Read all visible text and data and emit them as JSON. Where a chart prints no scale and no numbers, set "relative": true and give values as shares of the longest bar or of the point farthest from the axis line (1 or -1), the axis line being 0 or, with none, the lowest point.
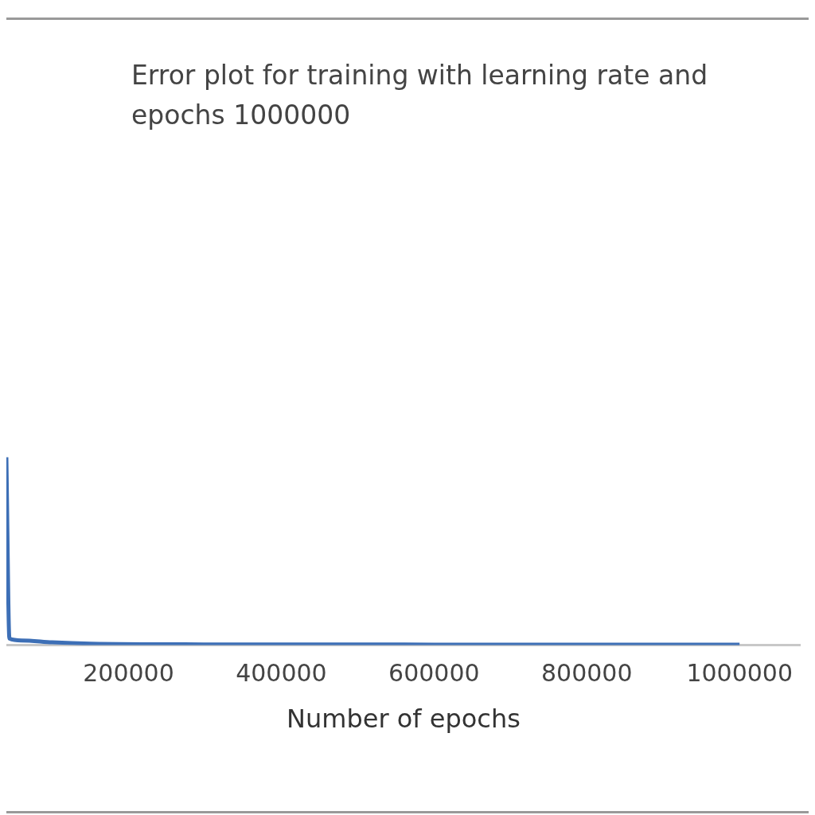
{
  "chart_data": {
    "type": "line",
    "title": "Error plot for training with learning rate and epochs 1000000",
    "xlabel": "Number of epochs",
    "relative": true,
    "tick_labels": "x",
    "grid": false,
    "legend": false,
    "marker": "none",
    "xlim": [
      40000,
      1080000
    ],
    "xticks": [
      200000,
      400000,
      600000,
      800000,
      1000000
    ],
    "series": [
      {
        "color": "#3d6fb6",
        "x": [
          40000,
          44000,
          60000,
          100000,
          150000,
          300000,
          600000,
          1000000
        ],
        "values": [
          1,
          0.035,
          0.025,
          0.015,
          0.008,
          0.004,
          0.003,
          0.003
        ]
      }
    ]
  }
}
